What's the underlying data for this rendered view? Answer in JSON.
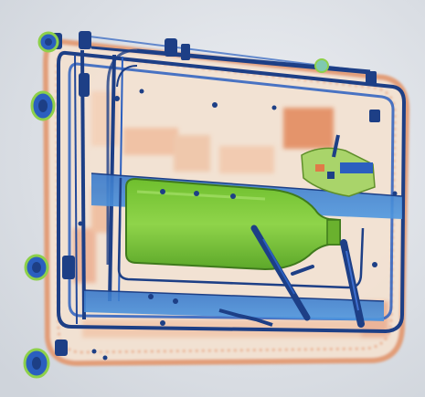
{
  "image": {
    "kind": "x-ray scan of a suitcase",
    "colors": {
      "background": "#dde0e6",
      "organic": "#e0916a",
      "organic_light": "#f0c9ad",
      "metal_dark": "#1d3f86",
      "metal_mid": "#2b5fbf",
      "glass_green": "#7cc23a",
      "glass_green_dark": "#4f8f25",
      "blue_bar": "#3f87d6"
    },
    "objects": [
      "suitcase-frame",
      "telescopic-handle-rails",
      "glass-bottle",
      "blue-compartment-bar-upper",
      "blue-compartment-bar-lower",
      "wheels",
      "electronics-board",
      "pens"
    ]
  }
}
